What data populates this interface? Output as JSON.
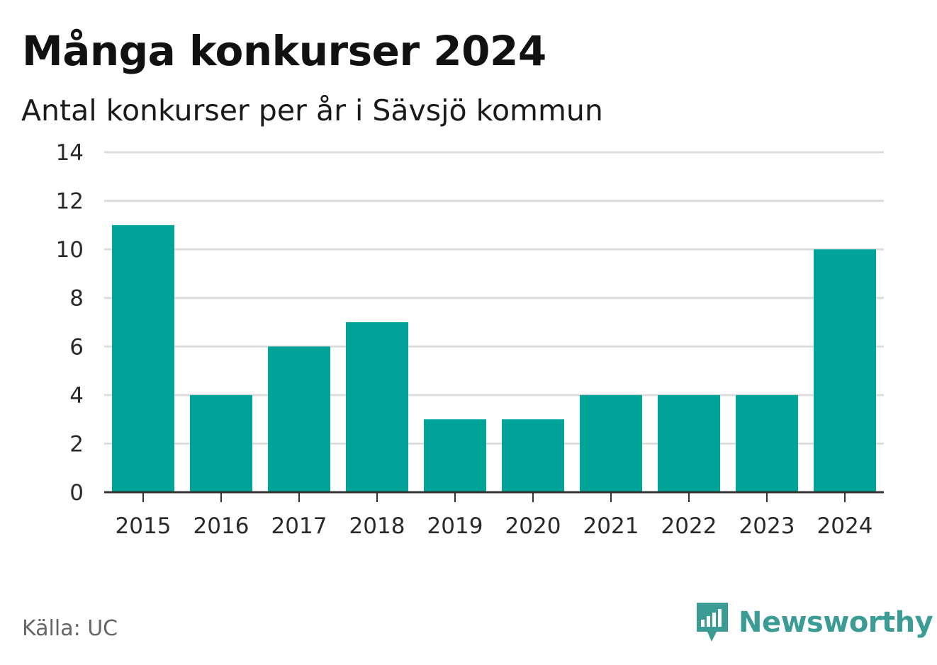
{
  "title": "Många konkurser 2024",
  "subtitle": "Antal konkurser per år i Sävsjö kommun",
  "source": "Källa: UC",
  "brand": {
    "name": "Newsworthy",
    "icon": "newsworthy-logo-icon",
    "color": "#3a9c95"
  },
  "colors": {
    "bar": "#00a398",
    "grid": "#dddddd",
    "axis": "#333333",
    "text": "#2a2a2a"
  },
  "chart_data": {
    "type": "bar",
    "title": "Många konkurser 2024",
    "subtitle": "Antal konkurser per år i Sävsjö kommun",
    "categories": [
      "2015",
      "2016",
      "2017",
      "2018",
      "2019",
      "2020",
      "2021",
      "2022",
      "2023",
      "2024"
    ],
    "values": [
      11,
      4,
      6,
      7,
      3,
      3,
      4,
      4,
      4,
      10
    ],
    "ylim": [
      0,
      14
    ],
    "yticks": [
      0,
      2,
      4,
      6,
      8,
      10,
      12,
      14
    ],
    "grid": true,
    "legend": "none"
  }
}
